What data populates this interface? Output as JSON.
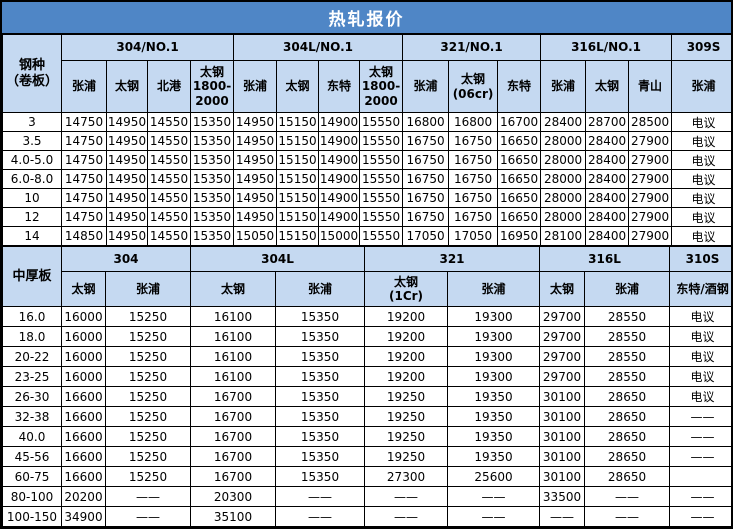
{
  "title": "热轧报价",
  "colors": {
    "title_bg": "#4f86c6",
    "title_text": "#ffffff",
    "header_bg": "#c5d9f1",
    "border": "#000000"
  },
  "coil": {
    "corner": "钢种\n（卷板）",
    "groups": [
      {
        "label": "304/NO.1",
        "mills": [
          "张浦",
          "太钢",
          "北港",
          "太钢\n1800-\n2000"
        ]
      },
      {
        "label": "304L/NO.1",
        "mills": [
          "张浦",
          "太钢",
          "东特",
          "太钢\n1800-\n2000"
        ]
      },
      {
        "label": "321/NO.1",
        "mills": [
          "张浦",
          "太钢\n(06cr)",
          "东特"
        ]
      },
      {
        "label": "316L/NO.1",
        "mills": [
          "张浦",
          "太钢",
          "青山"
        ]
      },
      {
        "label": "309S",
        "mills": [
          "张浦"
        ]
      }
    ],
    "rows": [
      {
        "label": "3",
        "values": [
          "14750",
          "14950",
          "14550",
          "15350",
          "14950",
          "15150",
          "14900",
          "15550",
          "16800",
          "16800",
          "16700",
          "28400",
          "28700",
          "28500",
          "电议"
        ]
      },
      {
        "label": "3.5",
        "values": [
          "14750",
          "14950",
          "14550",
          "15350",
          "14950",
          "15150",
          "14900",
          "15550",
          "16750",
          "16750",
          "16650",
          "28000",
          "28400",
          "27900",
          "电议"
        ]
      },
      {
        "label": "4.0-5.0",
        "values": [
          "14750",
          "14950",
          "14550",
          "15350",
          "14950",
          "15150",
          "14900",
          "15550",
          "16750",
          "16750",
          "16650",
          "28000",
          "28400",
          "27900",
          "电议"
        ]
      },
      {
        "label": "6.0-8.0",
        "values": [
          "14750",
          "14950",
          "14550",
          "15350",
          "14950",
          "15150",
          "14900",
          "15550",
          "16750",
          "16750",
          "16650",
          "28000",
          "28400",
          "27900",
          "电议"
        ]
      },
      {
        "label": "10",
        "values": [
          "14750",
          "14950",
          "14550",
          "15350",
          "14950",
          "15150",
          "14900",
          "15550",
          "16750",
          "16750",
          "16650",
          "28000",
          "28400",
          "27900",
          "电议"
        ]
      },
      {
        "label": "12",
        "values": [
          "14750",
          "14950",
          "14550",
          "15350",
          "14950",
          "15150",
          "14900",
          "15550",
          "16750",
          "16750",
          "16650",
          "28000",
          "28400",
          "27900",
          "电议"
        ]
      },
      {
        "label": "14",
        "values": [
          "14850",
          "14950",
          "14550",
          "15350",
          "15050",
          "15150",
          "15000",
          "15550",
          "17050",
          "17050",
          "16950",
          "28100",
          "28400",
          "27900",
          "电议"
        ]
      }
    ]
  },
  "plate": {
    "corner": "中厚板",
    "groups": [
      {
        "label": "304",
        "mills": [
          "太钢",
          "张浦"
        ]
      },
      {
        "label": "304L",
        "mills": [
          "太钢",
          "张浦"
        ]
      },
      {
        "label": "321",
        "mills": [
          "太钢\n(1Cr)",
          "张浦"
        ]
      },
      {
        "label": "316L",
        "mills": [
          "太钢",
          "张浦"
        ]
      },
      {
        "label": "310S",
        "mills": [
          "东特/酒钢"
        ]
      }
    ],
    "rows": [
      {
        "label": "16.0",
        "values": [
          "16000",
          "15250",
          "16100",
          "15350",
          "19200",
          "19300",
          "29700",
          "28550",
          "电议"
        ]
      },
      {
        "label": "18.0",
        "values": [
          "16000",
          "15250",
          "16100",
          "15350",
          "19200",
          "19300",
          "29700",
          "28550",
          "电议"
        ]
      },
      {
        "label": "20-22",
        "values": [
          "16000",
          "15250",
          "16100",
          "15350",
          "19200",
          "19300",
          "29700",
          "28550",
          "电议"
        ]
      },
      {
        "label": "23-25",
        "values": [
          "16000",
          "15250",
          "16100",
          "15350",
          "19200",
          "19300",
          "29700",
          "28550",
          "电议"
        ]
      },
      {
        "label": "26-30",
        "values": [
          "16600",
          "15250",
          "16700",
          "15350",
          "19250",
          "19350",
          "30100",
          "28650",
          "电议"
        ]
      },
      {
        "label": "32-38",
        "values": [
          "16600",
          "15250",
          "16700",
          "15350",
          "19250",
          "19350",
          "30100",
          "28650",
          "——"
        ]
      },
      {
        "label": "40.0",
        "values": [
          "16600",
          "15250",
          "16700",
          "15350",
          "19250",
          "19350",
          "30100",
          "28650",
          "——"
        ]
      },
      {
        "label": "45-56",
        "values": [
          "16600",
          "15250",
          "16700",
          "15350",
          "19250",
          "19350",
          "30100",
          "28650",
          "——"
        ]
      },
      {
        "label": "60-75",
        "values": [
          "16600",
          "15250",
          "16700",
          "15350",
          "27300",
          "25600",
          "30100",
          "28650",
          ""
        ]
      },
      {
        "label": "80-100",
        "values": [
          "20200",
          "——",
          "20300",
          "——",
          "——",
          "——",
          "33500",
          "——",
          "——"
        ]
      },
      {
        "label": "100-150",
        "values": [
          "34900",
          "——",
          "35100",
          "——",
          "——",
          "——",
          "——",
          "——",
          "——"
        ]
      }
    ]
  }
}
